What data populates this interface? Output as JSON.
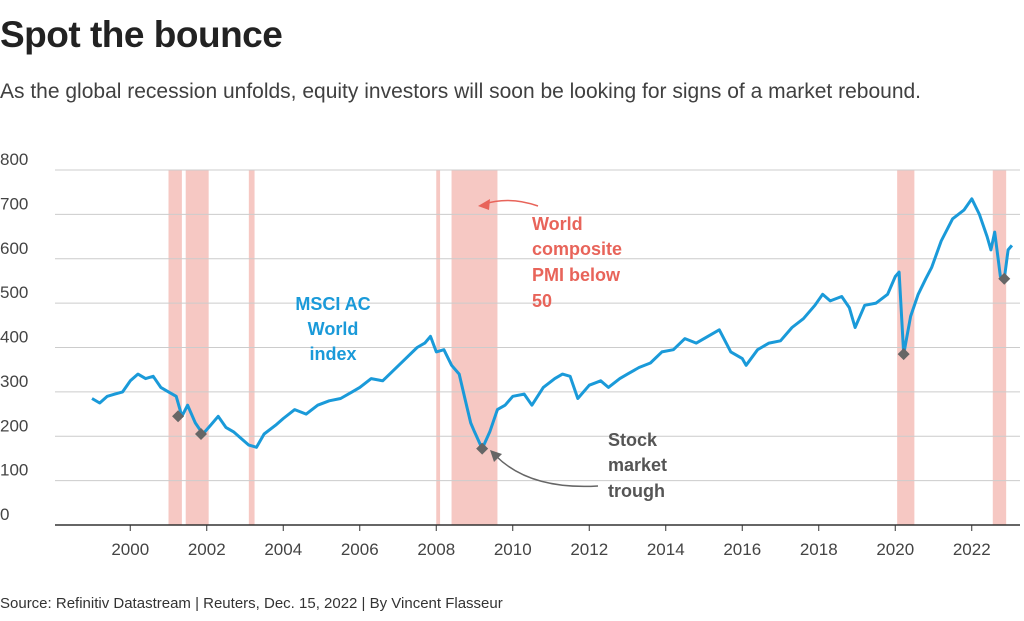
{
  "header": {
    "title": "Spot the bounce",
    "subtitle": "As the global recession unfolds, equity investors will soon be looking for signs of a market rebound."
  },
  "footer": {
    "source": "Source: Refinitiv Datastream | Reuters, Dec. 15, 2022 | By Vincent Flasseur"
  },
  "annotations": {
    "series_label": [
      "MSCI AC",
      "World",
      "index"
    ],
    "band_label": [
      "World",
      "composite",
      "PMI below",
      "50"
    ],
    "trough_label": [
      "Stock",
      "market",
      "trough"
    ]
  },
  "colors": {
    "series": "#1a9ad9",
    "band": "#f6c8c3",
    "band_label": "#e8645a",
    "trough_marker": "#666666",
    "grid": "#cccccc"
  },
  "chart_data": {
    "type": "line",
    "title": "Spot the bounce",
    "xlabel": "",
    "ylabel": "",
    "xlim": [
      1998.5,
      2023.3
    ],
    "ylim": [
      0,
      800
    ],
    "yticks": [
      0,
      100,
      200,
      300,
      400,
      500,
      600,
      700,
      800
    ],
    "xticks": [
      2000,
      2002,
      2004,
      2006,
      2008,
      2010,
      2012,
      2014,
      2016,
      2018,
      2020,
      2022
    ],
    "grid": true,
    "series": [
      {
        "name": "MSCI AC World index",
        "points": [
          [
            1999.0,
            285
          ],
          [
            1999.2,
            275
          ],
          [
            1999.4,
            290
          ],
          [
            1999.6,
            295
          ],
          [
            1999.8,
            300
          ],
          [
            2000.0,
            325
          ],
          [
            2000.2,
            340
          ],
          [
            2000.4,
            330
          ],
          [
            2000.6,
            335
          ],
          [
            2000.8,
            310
          ],
          [
            2001.0,
            300
          ],
          [
            2001.2,
            290
          ],
          [
            2001.35,
            245
          ],
          [
            2001.5,
            270
          ],
          [
            2001.7,
            230
          ],
          [
            2001.9,
            205
          ],
          [
            2002.1,
            225
          ],
          [
            2002.3,
            245
          ],
          [
            2002.5,
            220
          ],
          [
            2002.7,
            210
          ],
          [
            2002.9,
            195
          ],
          [
            2003.1,
            180
          ],
          [
            2003.3,
            175
          ],
          [
            2003.5,
            205
          ],
          [
            2003.8,
            225
          ],
          [
            2004.0,
            240
          ],
          [
            2004.3,
            260
          ],
          [
            2004.6,
            250
          ],
          [
            2004.9,
            270
          ],
          [
            2005.2,
            280
          ],
          [
            2005.5,
            285
          ],
          [
            2005.8,
            300
          ],
          [
            2006.0,
            310
          ],
          [
            2006.3,
            330
          ],
          [
            2006.6,
            325
          ],
          [
            2006.9,
            350
          ],
          [
            2007.2,
            375
          ],
          [
            2007.5,
            400
          ],
          [
            2007.7,
            410
          ],
          [
            2007.85,
            425
          ],
          [
            2008.0,
            390
          ],
          [
            2008.2,
            395
          ],
          [
            2008.4,
            360
          ],
          [
            2008.6,
            340
          ],
          [
            2008.75,
            285
          ],
          [
            2008.9,
            230
          ],
          [
            2009.0,
            210
          ],
          [
            2009.2,
            172
          ],
          [
            2009.4,
            210
          ],
          [
            2009.6,
            260
          ],
          [
            2009.8,
            270
          ],
          [
            2010.0,
            290
          ],
          [
            2010.3,
            295
          ],
          [
            2010.5,
            270
          ],
          [
            2010.8,
            310
          ],
          [
            2011.1,
            330
          ],
          [
            2011.3,
            340
          ],
          [
            2011.5,
            335
          ],
          [
            2011.7,
            285
          ],
          [
            2012.0,
            315
          ],
          [
            2012.3,
            325
          ],
          [
            2012.5,
            310
          ],
          [
            2012.8,
            330
          ],
          [
            2013.0,
            340
          ],
          [
            2013.3,
            355
          ],
          [
            2013.6,
            365
          ],
          [
            2013.9,
            390
          ],
          [
            2014.2,
            395
          ],
          [
            2014.5,
            420
          ],
          [
            2014.8,
            410
          ],
          [
            2015.1,
            425
          ],
          [
            2015.4,
            440
          ],
          [
            2015.7,
            390
          ],
          [
            2016.0,
            375
          ],
          [
            2016.1,
            360
          ],
          [
            2016.4,
            395
          ],
          [
            2016.7,
            410
          ],
          [
            2017.0,
            415
          ],
          [
            2017.3,
            445
          ],
          [
            2017.6,
            465
          ],
          [
            2017.9,
            495
          ],
          [
            2018.1,
            520
          ],
          [
            2018.3,
            505
          ],
          [
            2018.6,
            515
          ],
          [
            2018.8,
            490
          ],
          [
            2018.95,
            445
          ],
          [
            2019.2,
            495
          ],
          [
            2019.5,
            500
          ],
          [
            2019.8,
            520
          ],
          [
            2020.0,
            560
          ],
          [
            2020.1,
            570
          ],
          [
            2020.22,
            385
          ],
          [
            2020.4,
            470
          ],
          [
            2020.6,
            520
          ],
          [
            2020.8,
            555
          ],
          [
            2020.95,
            580
          ],
          [
            2021.2,
            640
          ],
          [
            2021.5,
            690
          ],
          [
            2021.8,
            710
          ],
          [
            2022.0,
            735
          ],
          [
            2022.2,
            700
          ],
          [
            2022.4,
            650
          ],
          [
            2022.5,
            620
          ],
          [
            2022.6,
            660
          ],
          [
            2022.75,
            560
          ],
          [
            2022.85,
            555
          ],
          [
            2022.95,
            620
          ],
          [
            2023.05,
            630
          ]
        ]
      }
    ],
    "bands": [
      [
        2001.0,
        2001.35
      ],
      [
        2001.45,
        2002.05
      ],
      [
        2003.1,
        2003.25
      ],
      [
        2008.0,
        2008.1
      ],
      [
        2008.4,
        2009.6
      ],
      [
        2020.05,
        2020.5
      ],
      [
        2022.55,
        2022.9
      ]
    ],
    "troughs": [
      [
        2001.25,
        245
      ],
      [
        2001.85,
        205
      ],
      [
        2009.2,
        172
      ],
      [
        2020.22,
        385
      ],
      [
        2022.85,
        555
      ]
    ]
  }
}
